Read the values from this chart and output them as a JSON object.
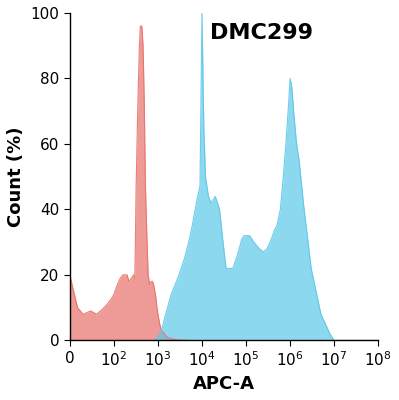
{
  "title": "DMC299",
  "xlabel": "APC-A",
  "ylabel": "Count (%)",
  "ylim": [
    0,
    100
  ],
  "yticks": [
    0,
    20,
    40,
    60,
    80,
    100
  ],
  "xtick_labels": [
    "0",
    "10$^2$",
    "10$^3$",
    "10$^4$",
    "10$^5$",
    "10$^6$",
    "10$^7$",
    "10$^8$"
  ],
  "xtick_positions": [
    10,
    100,
    1000,
    10000,
    100000,
    1000000,
    10000000,
    100000000
  ],
  "red_color": "#E8706A",
  "blue_color": "#5BC8E8",
  "red_x": [
    10,
    15,
    20,
    30,
    40,
    50,
    60,
    70,
    80,
    90,
    100,
    120,
    140,
    160,
    180,
    200,
    220,
    250,
    280,
    300,
    320,
    350,
    380,
    400,
    430,
    460,
    490,
    520,
    560,
    600,
    650,
    700,
    750,
    800,
    850,
    900,
    950,
    1000,
    1100,
    1200,
    1400,
    1600,
    2000,
    3000,
    5000
  ],
  "red_y": [
    20,
    10,
    8,
    9,
    8,
    9,
    10,
    11,
    12,
    13,
    14,
    17,
    19,
    20,
    20,
    20,
    18,
    19,
    20,
    19,
    47,
    72,
    90,
    96,
    96,
    90,
    72,
    47,
    32,
    20,
    17,
    18,
    18,
    17,
    15,
    13,
    10,
    8,
    5,
    3,
    2,
    1,
    0.5,
    0.1,
    0
  ],
  "blue_x": [
    800,
    1000,
    1200,
    1500,
    2000,
    3000,
    4000,
    5000,
    6000,
    7000,
    8000,
    9000,
    10000,
    11000,
    12000,
    14000,
    16000,
    18000,
    20000,
    25000,
    30000,
    35000,
    40000,
    50000,
    60000,
    70000,
    80000,
    90000,
    100000,
    120000,
    150000,
    200000,
    250000,
    300000,
    350000,
    400000,
    450000,
    500000,
    600000,
    700000,
    800000,
    900000,
    1000000,
    1100000,
    1200000,
    1400000,
    1600000,
    2000000,
    3000000,
    5000000,
    8000000,
    10000000,
    100000000
  ],
  "blue_y": [
    0,
    1,
    3,
    8,
    14,
    20,
    25,
    30,
    35,
    40,
    44,
    47,
    100,
    65,
    50,
    44,
    42,
    43,
    44,
    40,
    30,
    22,
    22,
    22,
    25,
    28,
    31,
    32,
    32,
    32,
    30,
    28,
    27,
    28,
    30,
    32,
    34,
    35,
    40,
    50,
    60,
    70,
    80,
    77,
    70,
    60,
    55,
    42,
    22,
    8,
    2,
    0,
    0
  ],
  "background_color": "#ffffff",
  "title_fontsize": 16,
  "label_fontsize": 13,
  "tick_fontsize": 11
}
